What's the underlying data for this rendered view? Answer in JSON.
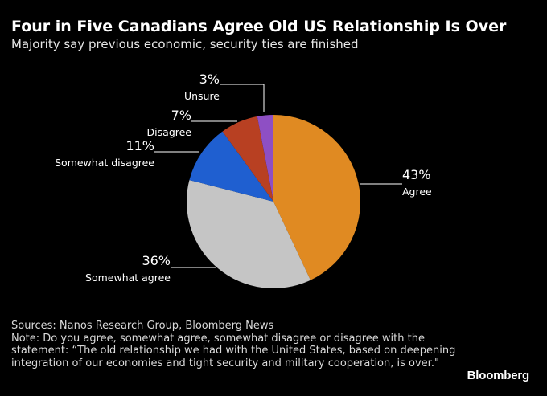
{
  "header": {
    "title": "Four in Five Canadians Agree Old US Relationship Is Over",
    "subtitle": "Majority say previous economic, security ties are finished"
  },
  "chart_data": {
    "type": "pie",
    "title": "Four in Five Canadians Agree Old US Relationship Is Over",
    "subtitle": "Majority say previous economic, security ties are finished",
    "unit": "%",
    "slices": [
      {
        "label": "Agree",
        "value": 43,
        "value_label": "43%",
        "color": "#e08a22"
      },
      {
        "label": "Somewhat agree",
        "value": 36,
        "value_label": "36%",
        "color": "#c5c5c5"
      },
      {
        "label": "Somewhat disagree",
        "value": 11,
        "value_label": "11%",
        "color": "#1f5fd0"
      },
      {
        "label": "Disagree",
        "value": 7,
        "value_label": "7%",
        "color": "#b84022"
      },
      {
        "label": "Unsure",
        "value": 3,
        "value_label": "3%",
        "color": "#8e4fc4"
      }
    ]
  },
  "footer": {
    "sources": "Sources: Nanos Research Group, Bloomberg News",
    "note": "Note: Do you agree, somewhat agree, somewhat disagree or disagree with the statement: “The old relationship we had with the United States, based on deepening integration of our economies and tight security and military cooperation, is over.\""
  },
  "brand": {
    "logo_text": "Bloomberg"
  }
}
